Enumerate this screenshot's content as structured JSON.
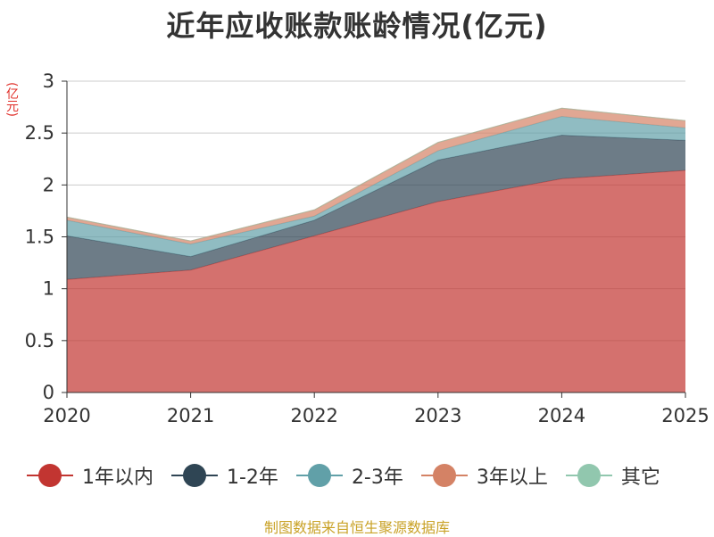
{
  "chart_data": {
    "type": "area",
    "stacked": true,
    "title": "近年应收账款账龄情况(亿元)",
    "unit_label": "(亿元)",
    "categories": [
      "2020",
      "2021",
      "2022",
      "2023",
      "2024",
      "2025"
    ],
    "ylim": [
      0,
      3
    ],
    "yticks": [
      "0",
      "0.5",
      "1",
      "1.5",
      "2",
      "2.5",
      "3"
    ],
    "grid": true,
    "legend_position": "bottom",
    "series": [
      {
        "name": "1年以内",
        "color": "#c23531",
        "values": [
          1.09,
          1.18,
          1.51,
          1.84,
          2.06,
          2.14
        ]
      },
      {
        "name": "1-2年",
        "color": "#2f4554",
        "values": [
          0.42,
          0.13,
          0.15,
          0.4,
          0.42,
          0.29
        ]
      },
      {
        "name": "2-3年",
        "color": "#61a0a8",
        "values": [
          0.15,
          0.12,
          0.04,
          0.09,
          0.18,
          0.12
        ]
      },
      {
        "name": "3年以上",
        "color": "#d48265",
        "values": [
          0.03,
          0.03,
          0.06,
          0.08,
          0.08,
          0.07
        ]
      },
      {
        "name": "其它",
        "color": "#91c7ae",
        "values": [
          0,
          0,
          0,
          0,
          0,
          0
        ]
      }
    ]
  },
  "source": "制图数据来自恒生聚源数据库"
}
